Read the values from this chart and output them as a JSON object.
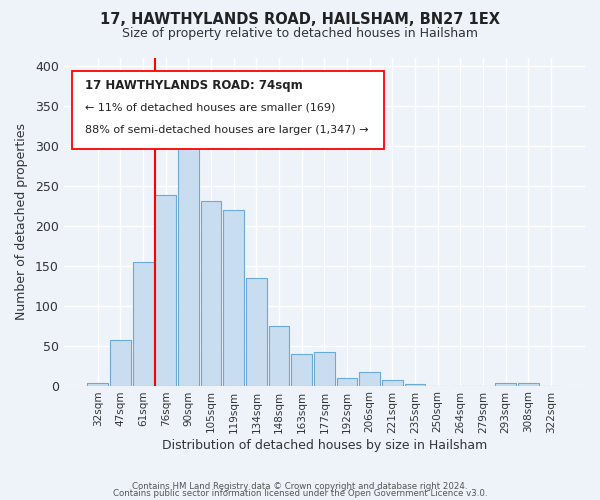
{
  "title": "17, HAWTHYLANDS ROAD, HAILSHAM, BN27 1EX",
  "subtitle": "Size of property relative to detached houses in Hailsham",
  "xlabel": "Distribution of detached houses by size in Hailsham",
  "ylabel": "Number of detached properties",
  "bar_labels": [
    "32sqm",
    "47sqm",
    "61sqm",
    "76sqm",
    "90sqm",
    "105sqm",
    "119sqm",
    "134sqm",
    "148sqm",
    "163sqm",
    "177sqm",
    "192sqm",
    "206sqm",
    "221sqm",
    "235sqm",
    "250sqm",
    "264sqm",
    "279sqm",
    "293sqm",
    "308sqm",
    "322sqm"
  ],
  "bar_values": [
    3,
    57,
    155,
    238,
    303,
    231,
    220,
    134,
    75,
    40,
    42,
    10,
    17,
    7,
    2,
    0,
    0,
    0,
    3,
    3
  ],
  "bar_color": "#c9ddf0",
  "bar_edge_color": "#6aaad4",
  "ylim": [
    0,
    410
  ],
  "yticks": [
    0,
    50,
    100,
    150,
    200,
    250,
    300,
    350,
    400
  ],
  "annotation_title": "17 HAWTHYLANDS ROAD: 74sqm",
  "annotation_line1": "← 11% of detached houses are smaller (169)",
  "annotation_line2": "88% of semi-detached houses are larger (1,347) →",
  "footer_line1": "Contains HM Land Registry data © Crown copyright and database right 2024.",
  "footer_line2": "Contains public sector information licensed under the Open Government Licence v3.0.",
  "background_color": "#eef2f9",
  "red_line_x": 3.5
}
